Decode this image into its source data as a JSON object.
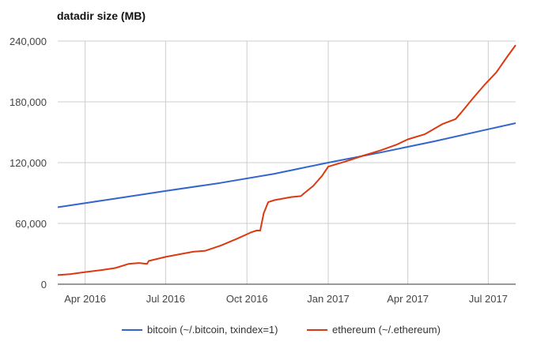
{
  "chart_data": {
    "type": "line",
    "title": "datadir size (MB)",
    "xlabel": "",
    "ylabel": "",
    "x_range": [
      "2016-03-01",
      "2017-08-01"
    ],
    "ylim": [
      0,
      240000
    ],
    "y_ticks": [
      0,
      60000,
      120000,
      180000,
      240000
    ],
    "y_tick_labels": [
      "0",
      "60,000",
      "120,000",
      "180,000",
      "240,000"
    ],
    "x_ticks": [
      "2016-04-01",
      "2016-07-01",
      "2016-10-01",
      "2017-01-01",
      "2017-04-01",
      "2017-07-01"
    ],
    "x_tick_labels": [
      "Apr 2016",
      "Jul 2016",
      "Oct 2016",
      "Jan 2017",
      "Apr 2017",
      "Jul 2017"
    ],
    "grid": true,
    "legend_position": "bottom",
    "series": [
      {
        "name": "bitcoin (~/.bitcoin, txindex=1)",
        "color": "#3366cc",
        "points": [
          [
            "2016-03-01",
            76000
          ],
          [
            "2016-05-01",
            84000
          ],
          [
            "2016-07-01",
            92000
          ],
          [
            "2016-09-01",
            100000
          ],
          [
            "2016-11-01",
            109000
          ],
          [
            "2017-01-01",
            120000
          ],
          [
            "2017-03-01",
            130000
          ],
          [
            "2017-05-01",
            141000
          ],
          [
            "2017-07-01",
            153000
          ],
          [
            "2017-08-01",
            159000
          ]
        ]
      },
      {
        "name": "ethereum (~/.ethereum)",
        "color": "#dc3912",
        "points": [
          [
            "2016-03-01",
            9000
          ],
          [
            "2016-03-15",
            10000
          ],
          [
            "2016-04-01",
            12000
          ],
          [
            "2016-04-20",
            14000
          ],
          [
            "2016-05-05",
            16000
          ],
          [
            "2016-05-20",
            20000
          ],
          [
            "2016-06-01",
            21000
          ],
          [
            "2016-06-10",
            20000
          ],
          [
            "2016-06-12",
            23000
          ],
          [
            "2016-07-01",
            27000
          ],
          [
            "2016-08-01",
            32000
          ],
          [
            "2016-08-15",
            33000
          ],
          [
            "2016-09-01",
            38000
          ],
          [
            "2016-09-20",
            45000
          ],
          [
            "2016-10-05",
            51000
          ],
          [
            "2016-10-12",
            53000
          ],
          [
            "2016-10-16",
            53000
          ],
          [
            "2016-10-20",
            70000
          ],
          [
            "2016-10-25",
            81000
          ],
          [
            "2016-11-01",
            83000
          ],
          [
            "2016-11-20",
            86000
          ],
          [
            "2016-12-01",
            87000
          ],
          [
            "2016-12-05",
            90000
          ],
          [
            "2016-12-15",
            97000
          ],
          [
            "2016-12-25",
            107000
          ],
          [
            "2017-01-01",
            116000
          ],
          [
            "2017-01-20",
            121000
          ],
          [
            "2017-02-10",
            127000
          ],
          [
            "2017-03-01",
            132000
          ],
          [
            "2017-03-20",
            138000
          ],
          [
            "2017-04-01",
            143000
          ],
          [
            "2017-04-20",
            148000
          ],
          [
            "2017-05-10",
            158000
          ],
          [
            "2017-05-25",
            163000
          ],
          [
            "2017-06-01",
            170000
          ],
          [
            "2017-06-15",
            185000
          ],
          [
            "2017-06-28",
            198000
          ],
          [
            "2017-07-10",
            209000
          ],
          [
            "2017-07-22",
            224000
          ],
          [
            "2017-08-01",
            236000
          ]
        ]
      }
    ]
  }
}
